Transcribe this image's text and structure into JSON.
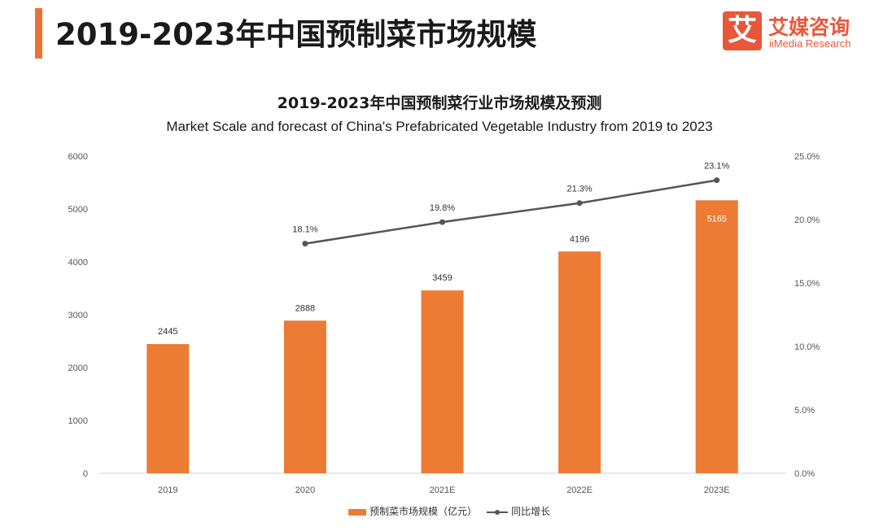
{
  "header": {
    "title": "2019-2023年中国预制菜市场规模",
    "brand_name": "艾媒咨询",
    "brand_sub": "iiMedia Research",
    "brand_glyph": "艾",
    "accent_color": "#e97237",
    "brand_color": "#e9573a"
  },
  "chart_data": {
    "type": "bar",
    "title": "2019-2023年中国预制菜行业市场规模及预测",
    "subtitle": "Market Scale and forecast of China's Prefabricated Vegetable Industry from 2019 to 2023",
    "categories": [
      "2019",
      "2020",
      "2021E",
      "2022E",
      "2023E"
    ],
    "series": [
      {
        "name": "预制菜市场规模（亿元）",
        "type": "bar",
        "axis": "left",
        "color": "#ec7b34",
        "values": [
          2445,
          2888,
          3459,
          4196,
          5165
        ],
        "labels": [
          "2445",
          "2888",
          "3459",
          "4196",
          "5165"
        ]
      },
      {
        "name": "同比增长",
        "type": "line",
        "axis": "right",
        "color": "#555555",
        "values": [
          null,
          18.1,
          19.8,
          21.3,
          23.1
        ],
        "labels": [
          "",
          "18.1%",
          "19.8%",
          "21.3%",
          "23.1%"
        ]
      }
    ],
    "ylim": [
      0,
      6000
    ],
    "yticks": [
      "0",
      "1000",
      "2000",
      "3000",
      "4000",
      "5000",
      "6000"
    ],
    "y2lim": [
      0,
      25
    ],
    "y2ticks": [
      "0.0%",
      "5.0%",
      "10.0%",
      "15.0%",
      "20.0%",
      "25.0%"
    ],
    "grid": false,
    "legend_position": "bottom"
  }
}
